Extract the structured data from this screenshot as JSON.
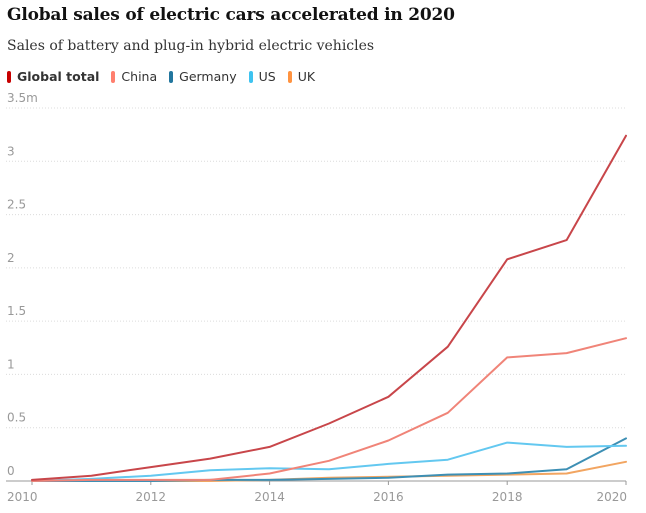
{
  "title": "Global sales of electric cars accelerated in 2020",
  "subtitle": "Sales of battery and plug-in hybrid electric vehicles",
  "legend": [
    {
      "label": "Global total",
      "color": "#c70000",
      "bold": true
    },
    {
      "label": "China",
      "color": "#ff7f6e",
      "bold": false
    },
    {
      "label": "Germany",
      "color": "#22769e",
      "bold": false
    },
    {
      "label": "US",
      "color": "#3ec3f0",
      "bold": false
    },
    {
      "label": "UK",
      "color": "#ff9340",
      "bold": false
    }
  ],
  "chart_data": {
    "type": "line",
    "title": "Global sales of electric cars accelerated in 2020",
    "subtitle": "Sales of battery and plug-in hybrid electric vehicles",
    "x": [
      2010,
      2011,
      2012,
      2013,
      2014,
      2015,
      2016,
      2017,
      2018,
      2019,
      2020
    ],
    "x_ticks": [
      "2010",
      "2012",
      "2014",
      "2016",
      "2018",
      "2020"
    ],
    "y_ticks": [
      "0",
      "0.5",
      "1",
      "1.5",
      "2",
      "2.5",
      "3",
      "3.5m"
    ],
    "ylim": [
      0,
      3.5
    ],
    "xlim": [
      2010,
      2020
    ],
    "grid": true,
    "legend_position": "top-left",
    "series": [
      {
        "name": "Global total",
        "color": "#c8464a",
        "values": [
          0.01,
          0.05,
          0.13,
          0.21,
          0.32,
          0.54,
          0.79,
          1.26,
          2.08,
          2.26,
          3.24
        ]
      },
      {
        "name": "China",
        "color": "#f08478",
        "values": [
          0.0,
          0.01,
          0.01,
          0.01,
          0.07,
          0.19,
          0.38,
          0.64,
          1.16,
          1.2,
          1.34
        ]
      },
      {
        "name": "US",
        "color": "#63c8f0",
        "values": [
          0.0,
          0.02,
          0.05,
          0.1,
          0.12,
          0.11,
          0.16,
          0.2,
          0.36,
          0.32,
          0.33
        ]
      },
      {
        "name": "Germany",
        "color": "#3d8fb4",
        "values": [
          0.0,
          0.0,
          0.0,
          0.01,
          0.01,
          0.02,
          0.03,
          0.06,
          0.07,
          0.11,
          0.4
        ]
      },
      {
        "name": "UK",
        "color": "#f2a561",
        "values": [
          0.0,
          0.0,
          0.0,
          0.0,
          0.01,
          0.03,
          0.04,
          0.05,
          0.06,
          0.07,
          0.18
        ]
      }
    ]
  }
}
